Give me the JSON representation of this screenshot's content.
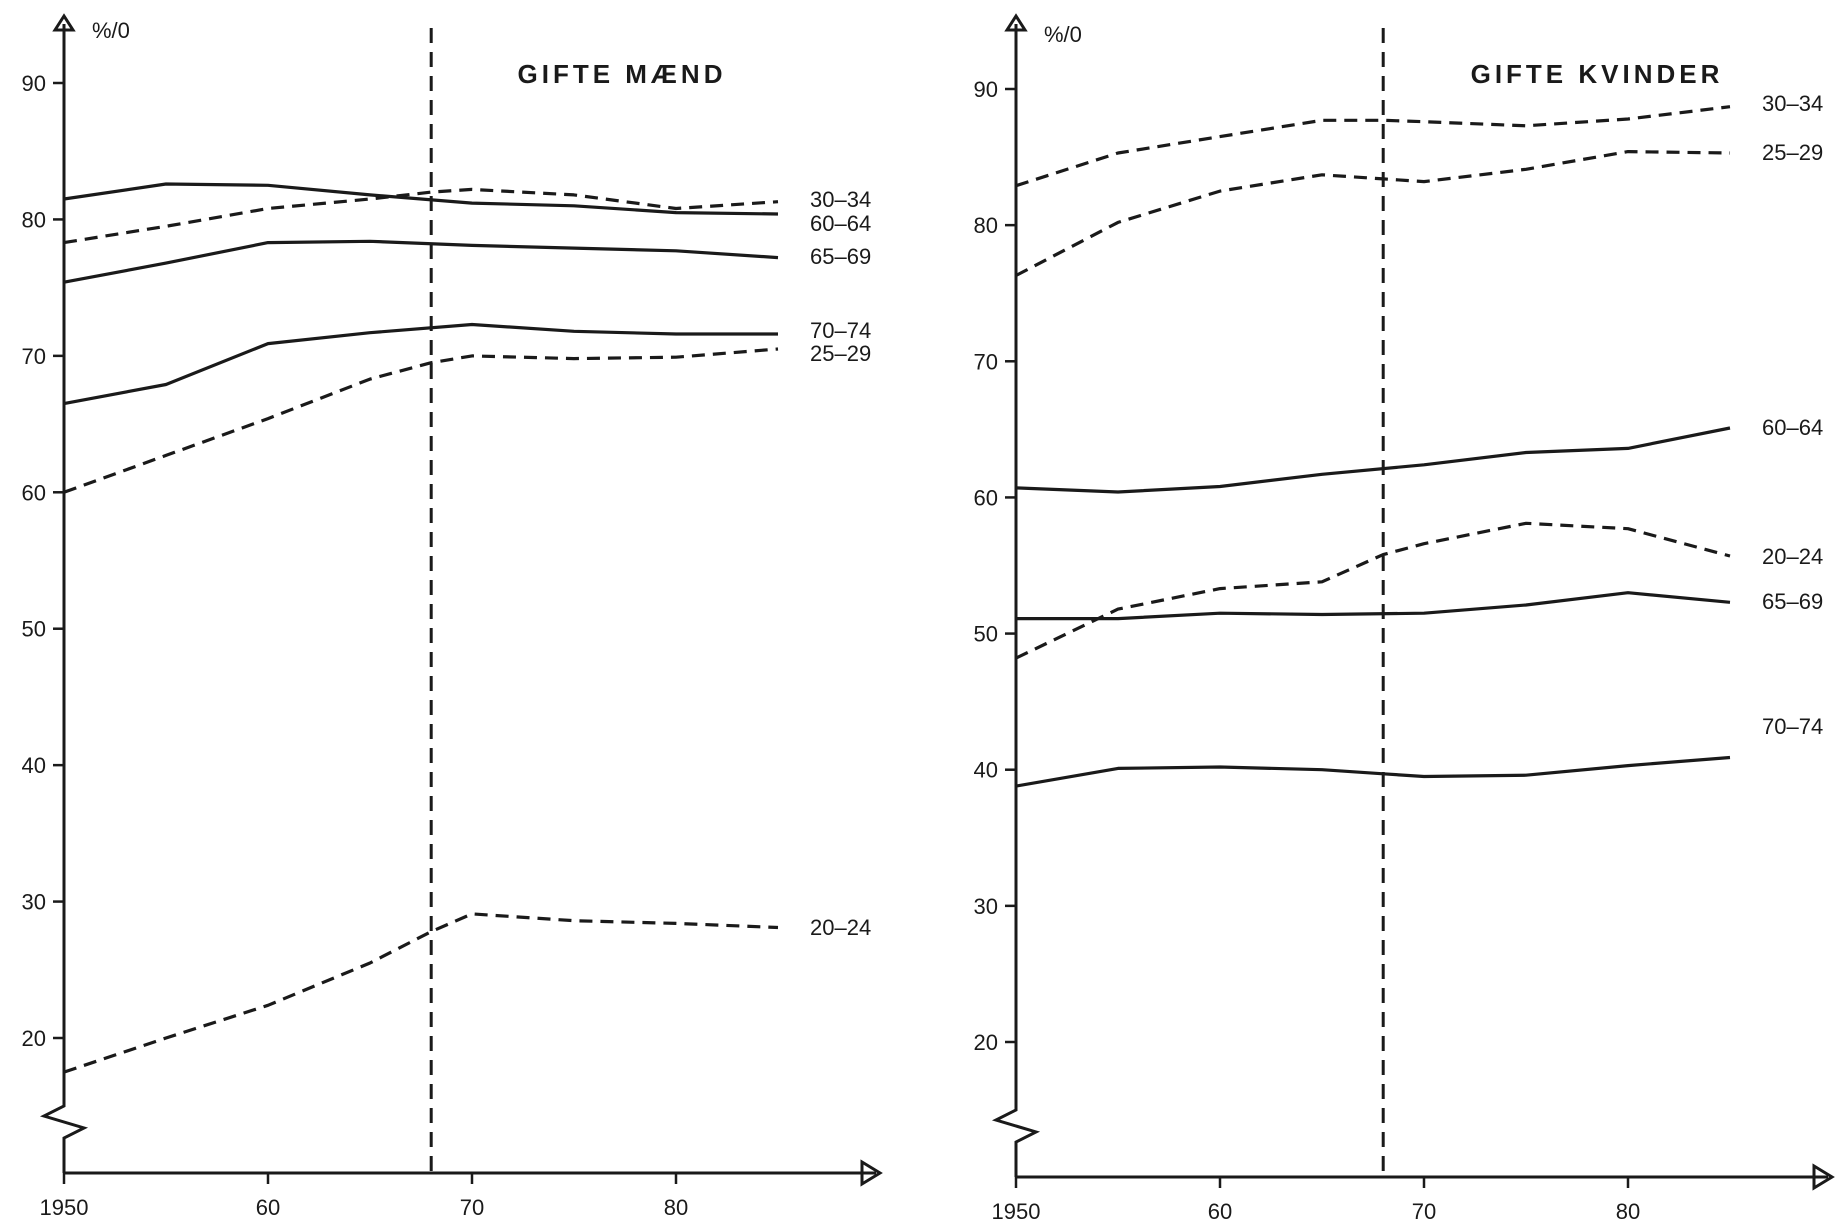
{
  "chart_data": [
    {
      "type": "line",
      "title": "GIFTE MÆND",
      "unit_label": "%/0",
      "x_ticks": [
        "1950",
        "60",
        "70",
        "80"
      ],
      "y_ticks": [
        "20",
        "30",
        "40",
        "50",
        "60",
        "70",
        "80",
        "90"
      ],
      "xlim": [
        1950,
        1985
      ],
      "ylim": [
        10,
        95
      ],
      "marker_year": 1968,
      "series": [
        {
          "name": "30-34",
          "style": "dashed",
          "label_text": "30–34",
          "x": [
            1950,
            1955,
            1960,
            1965,
            1968,
            1970,
            1975,
            1980,
            1985
          ],
          "y": [
            78.3,
            79.5,
            80.8,
            81.5,
            82.0,
            82.2,
            81.8,
            80.8,
            81.3
          ]
        },
        {
          "name": "60-64",
          "style": "solid",
          "label_text": "60–64",
          "x": [
            1950,
            1955,
            1960,
            1965,
            1970,
            1975,
            1980,
            1985
          ],
          "y": [
            81.5,
            82.6,
            82.5,
            81.8,
            81.2,
            81.0,
            80.5,
            80.4
          ]
        },
        {
          "name": "65-69",
          "style": "solid",
          "label_text": "65–69",
          "x": [
            1950,
            1955,
            1960,
            1965,
            1970,
            1975,
            1980,
            1985
          ],
          "y": [
            75.4,
            76.8,
            78.3,
            78.4,
            78.1,
            77.9,
            77.7,
            77.2
          ]
        },
        {
          "name": "70-74",
          "style": "solid",
          "label_text": "70–74",
          "x": [
            1950,
            1955,
            1960,
            1965,
            1970,
            1975,
            1980,
            1985
          ],
          "y": [
            66.5,
            67.9,
            70.9,
            71.7,
            72.3,
            71.8,
            71.6,
            71.6
          ]
        },
        {
          "name": "25-29",
          "style": "dashed",
          "label_text": "25–29",
          "x": [
            1950,
            1955,
            1960,
            1965,
            1968,
            1970,
            1975,
            1980,
            1985
          ],
          "y": [
            60.0,
            62.7,
            65.4,
            68.3,
            69.5,
            70.0,
            69.8,
            69.9,
            70.5
          ]
        },
        {
          "name": "20-24",
          "style": "dashed",
          "label_text": "20–24",
          "x": [
            1950,
            1955,
            1960,
            1965,
            1968,
            1970,
            1975,
            1980,
            1985
          ],
          "y": [
            17.5,
            20.0,
            22.4,
            25.5,
            27.8,
            29.1,
            28.6,
            28.4,
            28.1
          ]
        }
      ]
    },
    {
      "type": "line",
      "title": "GIFTE KVINDER",
      "unit_label": "%/0",
      "x_ticks": [
        "1950",
        "60",
        "70",
        "80"
      ],
      "y_ticks": [
        "20",
        "30",
        "40",
        "50",
        "60",
        "70",
        "80",
        "90"
      ],
      "xlim": [
        1950,
        1985
      ],
      "ylim": [
        10,
        95
      ],
      "marker_year": 1968,
      "series": [
        {
          "name": "30-34",
          "style": "dashed",
          "label_text": "30–34",
          "x": [
            1950,
            1955,
            1960,
            1965,
            1968,
            1970,
            1975,
            1980,
            1985
          ],
          "y": [
            82.9,
            85.3,
            86.5,
            87.7,
            87.7,
            87.6,
            87.3,
            87.8,
            88.7
          ]
        },
        {
          "name": "25-29",
          "style": "dashed",
          "label_text": "25–29",
          "x": [
            1950,
            1955,
            1960,
            1965,
            1968,
            1970,
            1975,
            1980,
            1985
          ],
          "y": [
            76.3,
            80.2,
            82.5,
            83.7,
            83.4,
            83.2,
            84.1,
            85.4,
            85.3
          ]
        },
        {
          "name": "60-64",
          "style": "solid",
          "label_text": "60–64",
          "x": [
            1950,
            1955,
            1960,
            1965,
            1970,
            1975,
            1980,
            1985
          ],
          "y": [
            60.7,
            60.4,
            60.8,
            61.7,
            62.4,
            63.3,
            63.6,
            65.1
          ]
        },
        {
          "name": "20-24",
          "style": "dashed",
          "label_text": "20–24",
          "x": [
            1950,
            1955,
            1960,
            1965,
            1968,
            1970,
            1975,
            1980,
            1985
          ],
          "y": [
            48.2,
            51.8,
            53.3,
            53.8,
            55.8,
            56.6,
            58.1,
            57.7,
            55.7
          ]
        },
        {
          "name": "65-69",
          "style": "solid",
          "label_text": "65–69",
          "x": [
            1950,
            1955,
            1960,
            1965,
            1970,
            1975,
            1980,
            1985
          ],
          "y": [
            51.1,
            51.1,
            51.5,
            51.4,
            51.5,
            52.1,
            53.0,
            52.3
          ]
        },
        {
          "name": "70-74",
          "style": "solid",
          "label_text": "70–74",
          "x": [
            1950,
            1955,
            1960,
            1965,
            1968,
            1970,
            1975,
            1980,
            1985
          ],
          "y": [
            38.8,
            40.1,
            40.2,
            40.0,
            39.7,
            39.5,
            39.6,
            40.3,
            40.9
          ]
        }
      ]
    }
  ]
}
